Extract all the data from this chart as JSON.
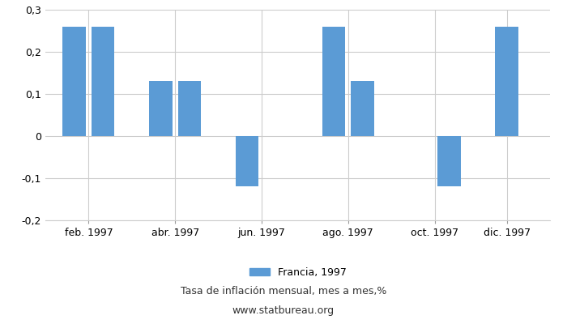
{
  "values": [
    0.26,
    0.26,
    0.13,
    0.13,
    -0.12,
    0.0,
    0.26,
    0.13,
    0.0,
    -0.12,
    0.26
  ],
  "bar_color": "#5b9bd5",
  "bar_positions": [
    1,
    2,
    4,
    5,
    7,
    8,
    10,
    11,
    13,
    14,
    16
  ],
  "xtick_positions": [
    1.5,
    4.5,
    7.5,
    10.5,
    13.5,
    16
  ],
  "xtick_labels": [
    "feb. 1997",
    "abr. 1997",
    "jun. 1997",
    "ago. 1997",
    "oct. 1997",
    "dic. 1997"
  ],
  "xlim": [
    0,
    17.5
  ],
  "ylim": [
    -0.2,
    0.3
  ],
  "yticks": [
    -0.2,
    -0.1,
    0,
    0.1,
    0.2,
    0.3
  ],
  "ytick_labels": [
    "-0,2",
    "-0,1",
    "0",
    "0,1",
    "0,2",
    "0,3"
  ],
  "bar_width": 0.8,
  "legend_label": "Francia, 1997",
  "subtitle": "Tasa de inflación mensual, mes a mes,%",
  "website": "www.statbureau.org",
  "background_color": "#ffffff",
  "grid_color": "#cccccc",
  "tick_fontsize": 9,
  "legend_fontsize": 9,
  "subtitle_fontsize": 9
}
